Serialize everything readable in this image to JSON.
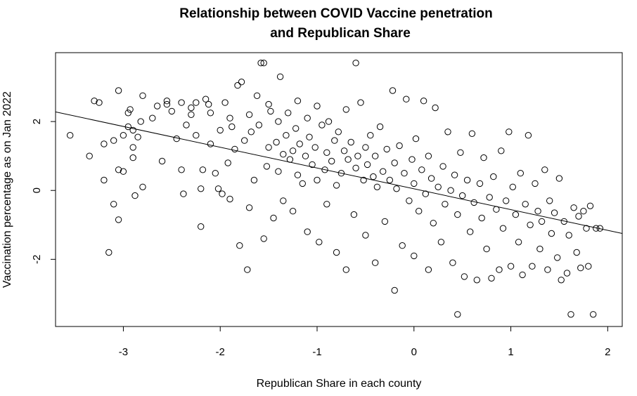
{
  "chart_data": {
    "type": "scatter",
    "title_lines": [
      "Relationship between COVID Vaccine penetration",
      "and Republican Share"
    ],
    "xlabel": "Republican Share in each county",
    "ylabel": "Vaccination percentage as on Jan 2022",
    "xlim": [
      -3.7,
      2.15
    ],
    "ylim": [
      -3.95,
      4.0
    ],
    "x_ticks": [
      -3,
      -2,
      -1,
      0,
      1,
      2
    ],
    "y_ticks": [
      -2,
      0,
      2
    ],
    "grid": false,
    "legend": "none",
    "regression_line": {
      "x": [
        -3.7,
        2.15
      ],
      "y": [
        2.28,
        -1.25
      ]
    },
    "points": [
      [
        -3.55,
        1.6
      ],
      [
        -3.35,
        1.0
      ],
      [
        -3.3,
        2.6
      ],
      [
        -3.25,
        2.55
      ],
      [
        -3.2,
        1.35
      ],
      [
        -3.2,
        0.3
      ],
      [
        -3.15,
        -1.8
      ],
      [
        -3.1,
        -0.4
      ],
      [
        -3.1,
        1.45
      ],
      [
        -3.05,
        2.9
      ],
      [
        -3.05,
        -0.85
      ],
      [
        -3.05,
        0.6
      ],
      [
        -3.0,
        1.6
      ],
      [
        -3.0,
        0.55
      ],
      [
        -2.95,
        1.85
      ],
      [
        -2.95,
        2.25
      ],
      [
        -2.93,
        2.35
      ],
      [
        -2.9,
        1.75
      ],
      [
        -2.9,
        1.25
      ],
      [
        -2.9,
        0.95
      ],
      [
        -2.88,
        -0.15
      ],
      [
        -2.85,
        1.55
      ],
      [
        -2.82,
        2.0
      ],
      [
        -2.8,
        0.1
      ],
      [
        -2.8,
        2.75
      ],
      [
        -2.7,
        2.1
      ],
      [
        -2.65,
        2.45
      ],
      [
        -2.6,
        0.85
      ],
      [
        -2.55,
        2.5
      ],
      [
        -2.55,
        2.6
      ],
      [
        -2.5,
        2.3
      ],
      [
        -2.45,
        1.5
      ],
      [
        -2.4,
        2.55
      ],
      [
        -2.4,
        0.6
      ],
      [
        -2.38,
        -0.1
      ],
      [
        -2.35,
        1.9
      ],
      [
        -2.3,
        2.4
      ],
      [
        -2.3,
        2.2
      ],
      [
        -2.25,
        2.55
      ],
      [
        -2.25,
        1.6
      ],
      [
        -2.2,
        0.05
      ],
      [
        -2.2,
        -1.05
      ],
      [
        -2.18,
        0.6
      ],
      [
        -2.15,
        2.65
      ],
      [
        -2.12,
        2.5
      ],
      [
        -2.1,
        2.25
      ],
      [
        -2.1,
        1.35
      ],
      [
        -2.05,
        0.5
      ],
      [
        -2.02,
        0.05
      ],
      [
        -2.0,
        1.75
      ],
      [
        -1.98,
        -0.1
      ],
      [
        -1.95,
        2.55
      ],
      [
        -1.92,
        0.8
      ],
      [
        -1.9,
        2.1
      ],
      [
        -1.9,
        -0.25
      ],
      [
        -1.88,
        1.85
      ],
      [
        -1.85,
        1.2
      ],
      [
        -1.82,
        3.05
      ],
      [
        -1.8,
        -1.6
      ],
      [
        -1.78,
        3.15
      ],
      [
        -1.75,
        1.45
      ],
      [
        -1.72,
        -2.3
      ],
      [
        -1.7,
        2.2
      ],
      [
        -1.7,
        -0.5
      ],
      [
        -1.68,
        1.7
      ],
      [
        -1.65,
        0.3
      ],
      [
        -1.62,
        2.75
      ],
      [
        -1.6,
        1.9
      ],
      [
        -1.58,
        3.7
      ],
      [
        -1.55,
        3.7
      ],
      [
        -1.55,
        -1.4
      ],
      [
        -1.52,
        0.7
      ],
      [
        -1.5,
        1.25
      ],
      [
        -1.5,
        2.5
      ],
      [
        -1.48,
        2.3
      ],
      [
        -1.45,
        -0.8
      ],
      [
        -1.42,
        1.4
      ],
      [
        -1.4,
        0.55
      ],
      [
        -1.4,
        2.0
      ],
      [
        -1.38,
        3.3
      ],
      [
        -1.35,
        1.05
      ],
      [
        -1.35,
        -0.3
      ],
      [
        -1.32,
        1.6
      ],
      [
        -1.3,
        2.25
      ],
      [
        -1.28,
        0.9
      ],
      [
        -1.25,
        1.15
      ],
      [
        -1.25,
        -0.6
      ],
      [
        -1.22,
        1.8
      ],
      [
        -1.2,
        0.45
      ],
      [
        -1.2,
        2.6
      ],
      [
        -1.18,
        1.35
      ],
      [
        -1.15,
        0.2
      ],
      [
        -1.12,
        1.0
      ],
      [
        -1.1,
        2.1
      ],
      [
        -1.1,
        -1.2
      ],
      [
        -1.08,
        1.55
      ],
      [
        -1.05,
        0.75
      ],
      [
        -1.02,
        1.25
      ],
      [
        -1.0,
        2.45
      ],
      [
        -1.0,
        0.3
      ],
      [
        -0.98,
        -1.5
      ],
      [
        -0.95,
        1.9
      ],
      [
        -0.92,
        0.6
      ],
      [
        -0.9,
        -0.4
      ],
      [
        -0.9,
        1.1
      ],
      [
        -0.88,
        2.0
      ],
      [
        -0.85,
        0.85
      ],
      [
        -0.82,
        1.45
      ],
      [
        -0.8,
        -1.8
      ],
      [
        -0.8,
        0.15
      ],
      [
        -0.78,
        1.7
      ],
      [
        -0.75,
        0.5
      ],
      [
        -0.72,
        1.15
      ],
      [
        -0.7,
        -2.3
      ],
      [
        -0.7,
        2.35
      ],
      [
        -0.68,
        0.9
      ],
      [
        -0.65,
        1.4
      ],
      [
        -0.62,
        -0.7
      ],
      [
        -0.6,
        0.65
      ],
      [
        -0.6,
        3.7
      ],
      [
        -0.58,
        1.0
      ],
      [
        -0.55,
        2.55
      ],
      [
        -0.52,
        0.3
      ],
      [
        -0.5,
        1.25
      ],
      [
        -0.5,
        -1.3
      ],
      [
        -0.48,
        0.75
      ],
      [
        -0.45,
        1.6
      ],
      [
        -0.42,
        0.4
      ],
      [
        -0.4,
        -2.1
      ],
      [
        -0.4,
        1.0
      ],
      [
        -0.38,
        0.1
      ],
      [
        -0.35,
        1.85
      ],
      [
        -0.32,
        0.55
      ],
      [
        -0.3,
        -0.9
      ],
      [
        -0.28,
        1.2
      ],
      [
        -0.25,
        0.3
      ],
      [
        -0.22,
        2.9
      ],
      [
        -0.2,
        0.8
      ],
      [
        -0.2,
        -2.9
      ],
      [
        -0.18,
        0.05
      ],
      [
        -0.15,
        1.3
      ],
      [
        -0.12,
        -1.6
      ],
      [
        -0.1,
        0.5
      ],
      [
        -0.08,
        2.65
      ],
      [
        -0.05,
        -0.3
      ],
      [
        -0.02,
        0.9
      ],
      [
        0.0,
        0.2
      ],
      [
        0.0,
        -1.9
      ],
      [
        0.02,
        1.5
      ],
      [
        0.05,
        -0.6
      ],
      [
        0.08,
        0.6
      ],
      [
        0.1,
        2.6
      ],
      [
        0.12,
        -0.1
      ],
      [
        0.15,
        1.0
      ],
      [
        0.15,
        -2.3
      ],
      [
        0.18,
        0.35
      ],
      [
        0.2,
        -0.95
      ],
      [
        0.22,
        2.4
      ],
      [
        0.25,
        0.1
      ],
      [
        0.28,
        -1.5
      ],
      [
        0.3,
        0.7
      ],
      [
        0.32,
        -0.4
      ],
      [
        0.35,
        1.7
      ],
      [
        0.38,
        0.0
      ],
      [
        0.4,
        -2.1
      ],
      [
        0.42,
        0.45
      ],
      [
        0.45,
        -0.7
      ],
      [
        0.48,
        1.1
      ],
      [
        0.5,
        -0.15
      ],
      [
        0.52,
        -2.5
      ],
      [
        0.55,
        0.3
      ],
      [
        0.58,
        -1.2
      ],
      [
        0.6,
        1.65
      ],
      [
        0.62,
        -0.35
      ],
      [
        0.65,
        -2.6
      ],
      [
        0.68,
        0.2
      ],
      [
        0.7,
        -0.8
      ],
      [
        0.72,
        0.95
      ],
      [
        0.75,
        -1.7
      ],
      [
        0.78,
        -0.2
      ],
      [
        0.8,
        -2.55
      ],
      [
        0.82,
        0.4
      ],
      [
        0.85,
        -0.55
      ],
      [
        0.88,
        -2.3
      ],
      [
        0.9,
        1.15
      ],
      [
        0.92,
        -1.1
      ],
      [
        0.95,
        -0.3
      ],
      [
        0.98,
        1.7
      ],
      [
        1.0,
        -2.2
      ],
      [
        1.02,
        0.1
      ],
      [
        1.05,
        -0.7
      ],
      [
        1.08,
        -1.5
      ],
      [
        1.1,
        0.5
      ],
      [
        1.12,
        -2.45
      ],
      [
        1.15,
        -0.4
      ],
      [
        1.18,
        1.6
      ],
      [
        1.2,
        -1.0
      ],
      [
        1.22,
        -2.2
      ],
      [
        1.25,
        0.2
      ],
      [
        1.28,
        -0.6
      ],
      [
        1.3,
        -1.7
      ],
      [
        1.32,
        -0.9
      ],
      [
        1.35,
        0.6
      ],
      [
        1.38,
        -2.3
      ],
      [
        1.4,
        -0.3
      ],
      [
        1.42,
        -1.25
      ],
      [
        1.45,
        -0.65
      ],
      [
        1.48,
        -1.95
      ],
      [
        1.5,
        0.35
      ],
      [
        1.52,
        -2.6
      ],
      [
        1.55,
        -0.9
      ],
      [
        1.58,
        -2.4
      ],
      [
        1.6,
        -1.3
      ],
      [
        1.62,
        -3.6
      ],
      [
        1.65,
        -0.5
      ],
      [
        1.68,
        -1.8
      ],
      [
        1.7,
        -0.75
      ],
      [
        1.72,
        -2.25
      ],
      [
        1.75,
        -0.6
      ],
      [
        1.78,
        -1.1
      ],
      [
        1.8,
        -2.2
      ],
      [
        1.82,
        -0.45
      ],
      [
        1.85,
        -3.6
      ],
      [
        1.88,
        -1.1
      ],
      [
        1.92,
        -1.1
      ],
      [
        0.45,
        -3.6
      ]
    ]
  }
}
